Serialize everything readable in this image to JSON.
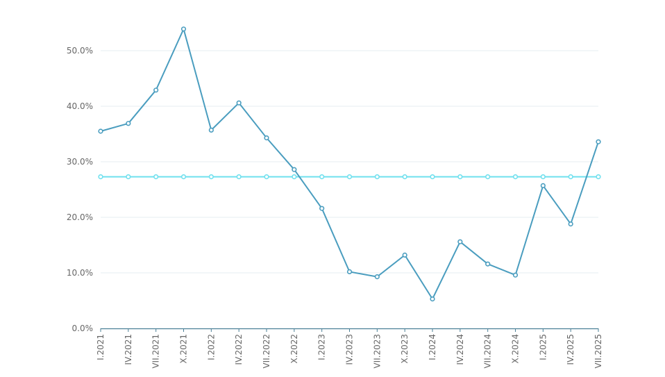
{
  "chart_data": {
    "type": "line",
    "categories": [
      "I.2021",
      "IV.2021",
      "VII.2021",
      "X.2021",
      "I.2022",
      "IV.2022",
      "VII.2022",
      "X.2022",
      "I.2023",
      "IV.2023",
      "VII.2023",
      "X.2023",
      "I.2024",
      "IV.2024",
      "VII.2024",
      "X.2024",
      "I.2025",
      "IV.2025",
      "VII.2025"
    ],
    "series": [
      {
        "color": "#4a9dbf",
        "values": [
          35.5,
          36.9,
          42.9,
          53.9,
          35.7,
          40.6,
          34.3,
          28.6,
          21.6,
          10.2,
          9.3,
          13.2,
          5.3,
          15.6,
          11.6,
          9.6,
          25.7,
          18.8,
          33.6
        ]
      },
      {
        "color": "#6fe0ee",
        "values": [
          27.3,
          27.3,
          27.3,
          27.3,
          27.3,
          27.3,
          27.3,
          27.3,
          27.3,
          27.3,
          27.3,
          27.3,
          27.3,
          27.3,
          27.3,
          27.3,
          27.3,
          27.3,
          27.3
        ]
      }
    ],
    "y_ticks": [
      "0.0%",
      "10.0%",
      "20.0%",
      "30.0%",
      "40.0%",
      "50.0%"
    ],
    "ylim": [
      0,
      50
    ],
    "grid": true,
    "legend": "none",
    "title": "",
    "xlabel": "",
    "ylabel": ""
  }
}
